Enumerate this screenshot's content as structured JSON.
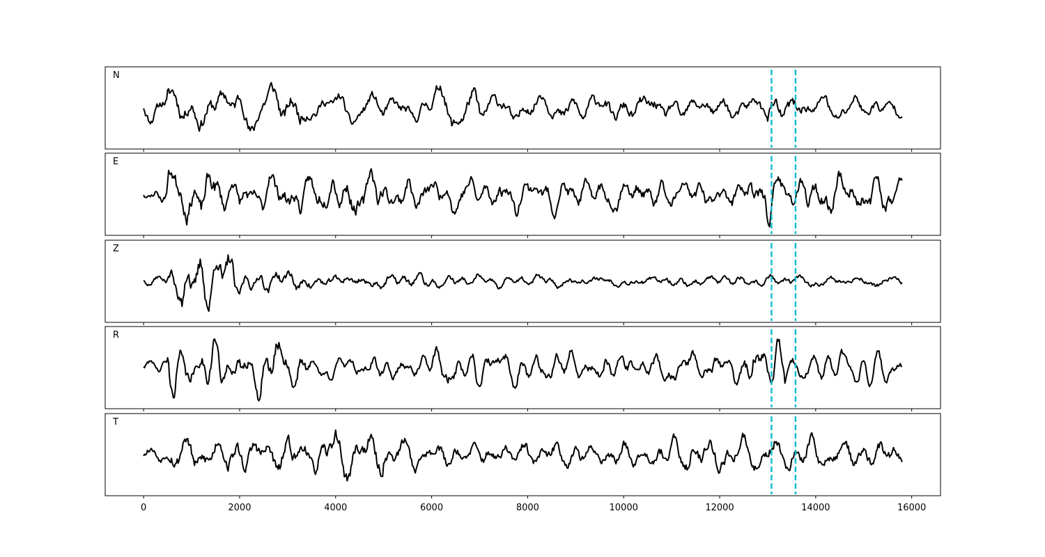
{
  "chart_data": {
    "type": "line",
    "xlabel": "",
    "ylabel": "",
    "xlim": [
      -800,
      16600
    ],
    "x_ticks": [
      "0",
      "2000",
      "4000",
      "6000",
      "8000",
      "10000",
      "12000",
      "14000",
      "16000"
    ],
    "x_tick_values": [
      0,
      2000,
      4000,
      6000,
      8000,
      10000,
      12000,
      14000,
      16000
    ],
    "samples": [
      0,
      15800
    ],
    "grid": false,
    "trace_color": "#000000",
    "marker_color": "#17becf",
    "markers": [
      13080,
      13580
    ],
    "panels": [
      {
        "label": "N",
        "seed": 11,
        "bursts": [
          [
            0,
            500,
            0.35
          ],
          [
            500,
            2200,
            0.55
          ],
          [
            2200,
            3500,
            0.55
          ],
          [
            3500,
            6000,
            0.35
          ],
          [
            6000,
            7000,
            0.55
          ],
          [
            7000,
            11000,
            0.4
          ],
          [
            11000,
            13000,
            0.35
          ],
          [
            13000,
            13600,
            0.5
          ],
          [
            13600,
            15800,
            0.35
          ]
        ]
      },
      {
        "label": "E",
        "seed": 23,
        "bursts": [
          [
            0,
            500,
            0.25
          ],
          [
            500,
            1600,
            0.7
          ],
          [
            1600,
            3500,
            0.55
          ],
          [
            3500,
            5000,
            0.6
          ],
          [
            5000,
            12500,
            0.45
          ],
          [
            12500,
            13400,
            0.65
          ],
          [
            13400,
            15800,
            0.5
          ]
        ]
      },
      {
        "label": "Z",
        "seed": 37,
        "bursts": [
          [
            0,
            450,
            0.15
          ],
          [
            450,
            800,
            0.45
          ],
          [
            800,
            1900,
            0.8
          ],
          [
            1900,
            3500,
            0.35
          ],
          [
            3500,
            6000,
            0.25
          ],
          [
            6000,
            15800,
            0.18
          ]
        ]
      },
      {
        "label": "R",
        "seed": 41,
        "bursts": [
          [
            0,
            500,
            0.2
          ],
          [
            500,
            1900,
            0.55
          ],
          [
            1900,
            3400,
            0.6
          ],
          [
            3400,
            6000,
            0.3
          ],
          [
            6000,
            7000,
            0.45
          ],
          [
            7000,
            12500,
            0.35
          ],
          [
            12500,
            13500,
            0.6
          ],
          [
            13500,
            15800,
            0.35
          ]
        ]
      },
      {
        "label": "T",
        "seed": 53,
        "bursts": [
          [
            0,
            500,
            0.25
          ],
          [
            500,
            2100,
            0.55
          ],
          [
            2100,
            3500,
            0.55
          ],
          [
            3500,
            5000,
            0.6
          ],
          [
            5000,
            10800,
            0.4
          ],
          [
            10800,
            12200,
            0.55
          ],
          [
            12200,
            15800,
            0.45
          ]
        ]
      }
    ]
  }
}
